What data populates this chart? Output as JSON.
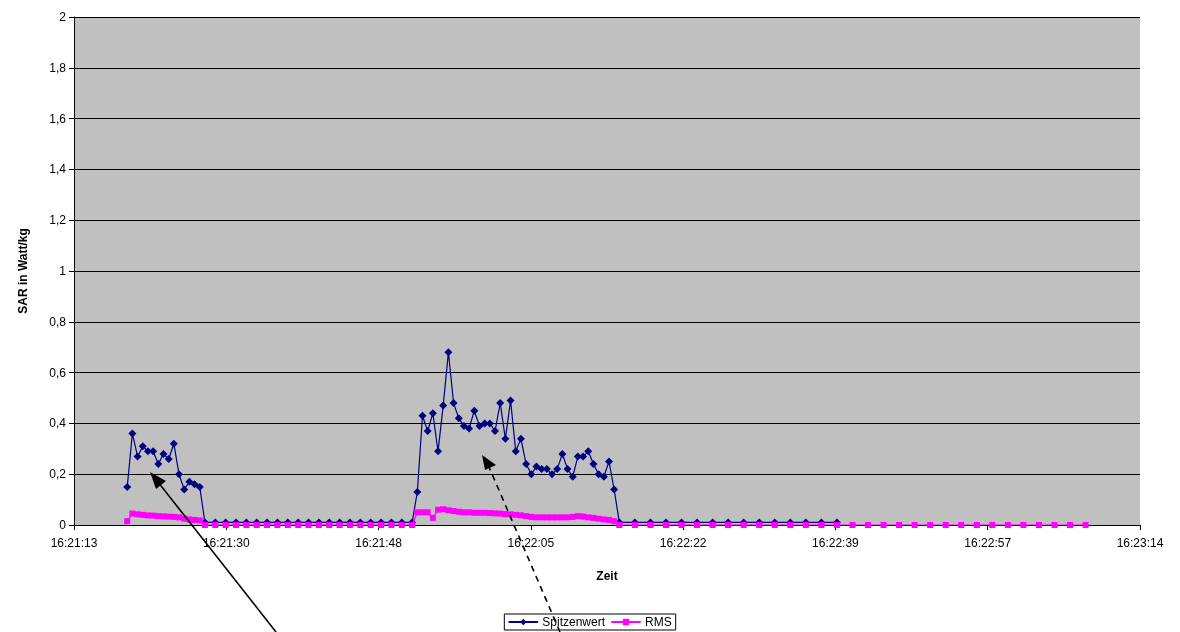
{
  "chart_data": {
    "type": "line",
    "xlabel": "Zeit",
    "ylabel": "SAR in Watt/kg",
    "x": [
      16.355289,
      16.355452,
      16.355616,
      16.355779,
      16.355942,
      16.356106,
      16.356269,
      16.356432,
      16.356596,
      16.356759,
      16.356922,
      16.357086,
      16.357249,
      16.357412,
      16.357576,
      16.357739,
      16.358066,
      16.358392,
      16.358719,
      16.359046,
      16.359372,
      16.359699,
      16.360026,
      16.360352,
      16.360679,
      16.361006,
      16.361332,
      16.361659,
      16.361986,
      16.362312,
      16.362639,
      16.362966,
      16.363292,
      16.363619,
      16.363946,
      16.364272,
      16.364436,
      16.364599,
      16.364762,
      16.364926,
      16.365089,
      16.365252,
      16.365416,
      16.365579,
      16.365742,
      16.365906,
      16.366069,
      16.366232,
      16.366396,
      16.366559,
      16.366722,
      16.366886,
      16.367049,
      16.367212,
      16.367376,
      16.367539,
      16.367702,
      16.367866,
      16.368029,
      16.368192,
      16.368356,
      16.368519,
      16.368682,
      16.368846,
      16.369009,
      16.369172,
      16.369336,
      16.369499,
      16.369662,
      16.369826,
      16.369989,
      16.370152,
      16.370316,
      16.370479,
      16.370642,
      16.370806,
      16.371296,
      16.371786,
      16.372276,
      16.372766,
      16.373256,
      16.373746,
      16.374236,
      16.374726,
      16.375216,
      16.375706,
      16.376196,
      16.376686,
      16.377176,
      16.377666,
      16.378156,
      16.378646,
      16.379136,
      16.379626,
      16.380116,
      16.380606,
      16.381096,
      16.381586,
      16.382076,
      16.382566,
      16.383056,
      16.383546,
      16.384036,
      16.384526,
      16.385016,
      16.385506
    ],
    "series": [
      {
        "name": "Spitzenwert",
        "color": "#000080",
        "marker": "diamond",
        "values": [
          0.15,
          0.36,
          0.27,
          0.31,
          0.29,
          0.29,
          0.24,
          0.28,
          0.26,
          0.32,
          0.2,
          0.14,
          0.17,
          0.16,
          0.15,
          0.01,
          0.01,
          0.01,
          0.01,
          0.01,
          0.01,
          0.01,
          0.01,
          0.01,
          0.01,
          0.01,
          0.01,
          0.01,
          0.01,
          0.01,
          0.01,
          0.01,
          0.01,
          0.01,
          0.01,
          0.01,
          0.13,
          0.43,
          0.37,
          0.44,
          0.29,
          0.47,
          0.68,
          0.48,
          0.42,
          0.39,
          0.38,
          0.45,
          0.39,
          0.4,
          0.4,
          0.37,
          0.48,
          0.34,
          0.49,
          0.29,
          0.34,
          0.24,
          0.2,
          0.23,
          0.22,
          0.22,
          0.2,
          0.22,
          0.28,
          0.22,
          0.19,
          0.27,
          0.27,
          0.29,
          0.24,
          0.2,
          0.19,
          0.25,
          0.14,
          0.01,
          0.01,
          0.01,
          0.01,
          0.01,
          0.01,
          0.01,
          0.01,
          0.01,
          0.01,
          0.01,
          0.01,
          0.01,
          0.01,
          0.01,
          null,
          null,
          null,
          null,
          null,
          null,
          null,
          null,
          null,
          null,
          null,
          null,
          null,
          null,
          null,
          null
        ]
      },
      {
        "name": "RMS",
        "color": "#ff00ff",
        "marker": "square",
        "values": [
          0.015,
          0.045,
          0.042,
          0.04,
          0.038,
          0.037,
          0.035,
          0.034,
          0.033,
          0.032,
          0.03,
          0.025,
          0.022,
          0.02,
          0.018,
          0,
          0,
          0,
          0,
          0,
          0,
          0,
          0,
          0,
          0,
          0,
          0,
          0,
          0,
          0,
          0,
          0,
          0,
          0,
          0,
          0,
          0.05,
          0.05,
          0.05,
          0.028,
          0.06,
          0.062,
          0.058,
          0.055,
          0.052,
          0.05,
          0.05,
          0.048,
          0.048,
          0.048,
          0.047,
          0.046,
          0.045,
          0.043,
          0.042,
          0.04,
          0.038,
          0.035,
          0.032,
          0.03,
          0.03,
          0.03,
          0.03,
          0.03,
          0.03,
          0.03,
          0.032,
          0.035,
          0.033,
          0.03,
          0.028,
          0.025,
          0.022,
          0.02,
          0.015,
          0,
          0,
          0,
          0,
          0,
          0,
          0,
          0,
          0,
          0,
          0,
          0,
          0,
          0,
          0,
          0,
          0,
          0,
          0,
          0,
          0,
          0,
          0,
          0,
          0,
          0,
          0,
          0,
          0,
          0,
          0
        ]
      }
    ],
    "xlim": [
      16.353611,
      16.387222
    ],
    "xticks": [
      {
        "value": 16.353611,
        "label": "16:21:13"
      },
      {
        "value": 16.358413,
        "label": "16:21:30"
      },
      {
        "value": 16.363214,
        "label": "16:21:48"
      },
      {
        "value": 16.368016,
        "label": "16:22:05"
      },
      {
        "value": 16.372817,
        "label": "16:22:22"
      },
      {
        "value": 16.377619,
        "label": "16:22:39"
      },
      {
        "value": 16.382421,
        "label": "16:22:57"
      },
      {
        "value": 16.387222,
        "label": "16:23:14"
      }
    ],
    "ylim": [
      0,
      2
    ],
    "yticks": [
      0,
      {
        "value": 0.2,
        "label": "0,2"
      },
      {
        "value": 0.4,
        "label": "0,4"
      },
      {
        "value": 0.6,
        "label": "0,6"
      },
      {
        "value": 0.8,
        "label": "0,8"
      },
      1,
      {
        "value": 1.2,
        "label": "1,2"
      },
      {
        "value": 1.4,
        "label": "1,4"
      },
      {
        "value": 1.6,
        "label": "1,6"
      },
      {
        "value": 1.8,
        "label": "1,8"
      },
      2
    ],
    "grid": "y",
    "legend": "bottom",
    "line_style": "solid"
  }
}
